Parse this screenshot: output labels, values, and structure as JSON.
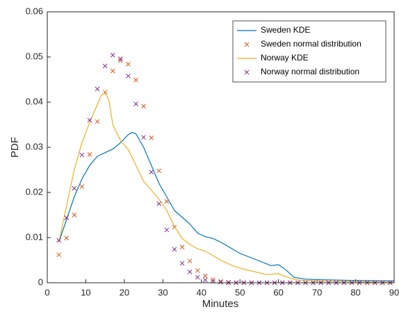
{
  "chart_data": {
    "type": "line",
    "xlabel": "Minutes",
    "ylabel": "PDF",
    "xlim": [
      0,
      90
    ],
    "xticks": [
      0,
      10,
      20,
      30,
      40,
      50,
      60,
      70,
      80,
      90
    ],
    "ylim": [
      0,
      0.06
    ],
    "yticks": [
      0,
      0.01,
      0.02,
      0.03,
      0.04,
      0.05,
      0.06
    ],
    "grid": false,
    "legend": "upper right",
    "series": [
      {
        "name": "Sweden KDE",
        "style": "line",
        "color": "#0072bd",
        "x": [
          3,
          5,
          7,
          9,
          11,
          13,
          15,
          17,
          19,
          21,
          22,
          23,
          25,
          27,
          29,
          31,
          33,
          35,
          37,
          39,
          41,
          43,
          45,
          47,
          50,
          53,
          56,
          58,
          60,
          62,
          64,
          67,
          70,
          80,
          90
        ],
        "values": [
          0.009,
          0.014,
          0.019,
          0.023,
          0.026,
          0.028,
          0.0288,
          0.0296,
          0.031,
          0.0328,
          0.0333,
          0.033,
          0.03,
          0.026,
          0.022,
          0.019,
          0.016,
          0.0145,
          0.013,
          0.011,
          0.0102,
          0.0098,
          0.009,
          0.008,
          0.0065,
          0.0055,
          0.0045,
          0.0038,
          0.004,
          0.0028,
          0.0012,
          0.0008,
          0.0007,
          0.0005,
          0.0004
        ]
      },
      {
        "name": "Sweden normal distribution",
        "style": "marker",
        "color": "#d95319",
        "x": [
          3,
          5,
          7,
          9,
          11,
          13,
          15,
          17,
          19,
          21,
          23,
          25,
          27,
          29,
          31,
          33,
          35,
          37,
          39,
          41,
          43,
          45,
          47,
          49,
          51,
          53,
          55,
          57,
          59,
          61,
          63,
          65,
          67,
          69,
          71,
          73,
          75,
          77,
          79,
          81,
          83,
          85,
          87,
          89
        ],
        "values": [
          0.0062,
          0.0099,
          0.015,
          0.0213,
          0.0284,
          0.0357,
          0.0422,
          0.0469,
          0.0492,
          0.0484,
          0.0449,
          0.0391,
          0.0321,
          0.0248,
          0.018,
          0.0123,
          0.0079,
          0.0048,
          0.0027,
          0.0015,
          0.0007,
          0.0003,
          0.0001,
          0,
          0,
          0,
          0,
          0,
          0,
          0,
          0,
          0,
          0,
          0,
          0,
          0,
          0,
          0,
          0,
          0,
          0,
          0,
          0,
          0
        ]
      },
      {
        "name": "Norway KDE",
        "style": "line",
        "color": "#edb120",
        "x": [
          3,
          5,
          7,
          9,
          11,
          13,
          14,
          15,
          16,
          17,
          19,
          21,
          23,
          25,
          27,
          29,
          31,
          33,
          35,
          37,
          39,
          41,
          43,
          45,
          48,
          51,
          54,
          57,
          60,
          62,
          65,
          70,
          80,
          90
        ],
        "values": [
          0.009,
          0.017,
          0.025,
          0.031,
          0.0355,
          0.0395,
          0.0415,
          0.042,
          0.0405,
          0.035,
          0.0315,
          0.0295,
          0.026,
          0.0225,
          0.0205,
          0.0185,
          0.016,
          0.0125,
          0.0098,
          0.0085,
          0.0075,
          0.007,
          0.006,
          0.005,
          0.0038,
          0.003,
          0.0024,
          0.0018,
          0.002,
          0.0013,
          0.0006,
          0.0004,
          0.0002,
          0.0001
        ]
      },
      {
        "name": "Norway normal distribution",
        "style": "marker",
        "color": "#7e2f8e",
        "x": [
          3,
          5,
          7,
          9,
          11,
          13,
          15,
          17,
          19,
          21,
          23,
          25,
          27,
          29,
          31,
          33,
          35,
          37,
          39,
          41,
          43,
          45,
          47,
          49,
          51,
          53,
          55,
          57,
          59,
          61,
          63,
          65,
          67,
          69,
          71,
          73,
          75,
          77,
          79,
          81,
          83,
          85,
          87,
          89
        ],
        "values": [
          0.0094,
          0.0144,
          0.0209,
          0.0283,
          0.036,
          0.0429,
          0.048,
          0.0504,
          0.0496,
          0.0458,
          0.0396,
          0.0322,
          0.0245,
          0.0175,
          0.0117,
          0.0074,
          0.0043,
          0.0024,
          0.0012,
          0.0006,
          0.0003,
          0.0001,
          0,
          0,
          0,
          0,
          0,
          0,
          0,
          0,
          0,
          0,
          0,
          0,
          0,
          0,
          0,
          0,
          0,
          0,
          0,
          0,
          0,
          0
        ]
      }
    ]
  }
}
